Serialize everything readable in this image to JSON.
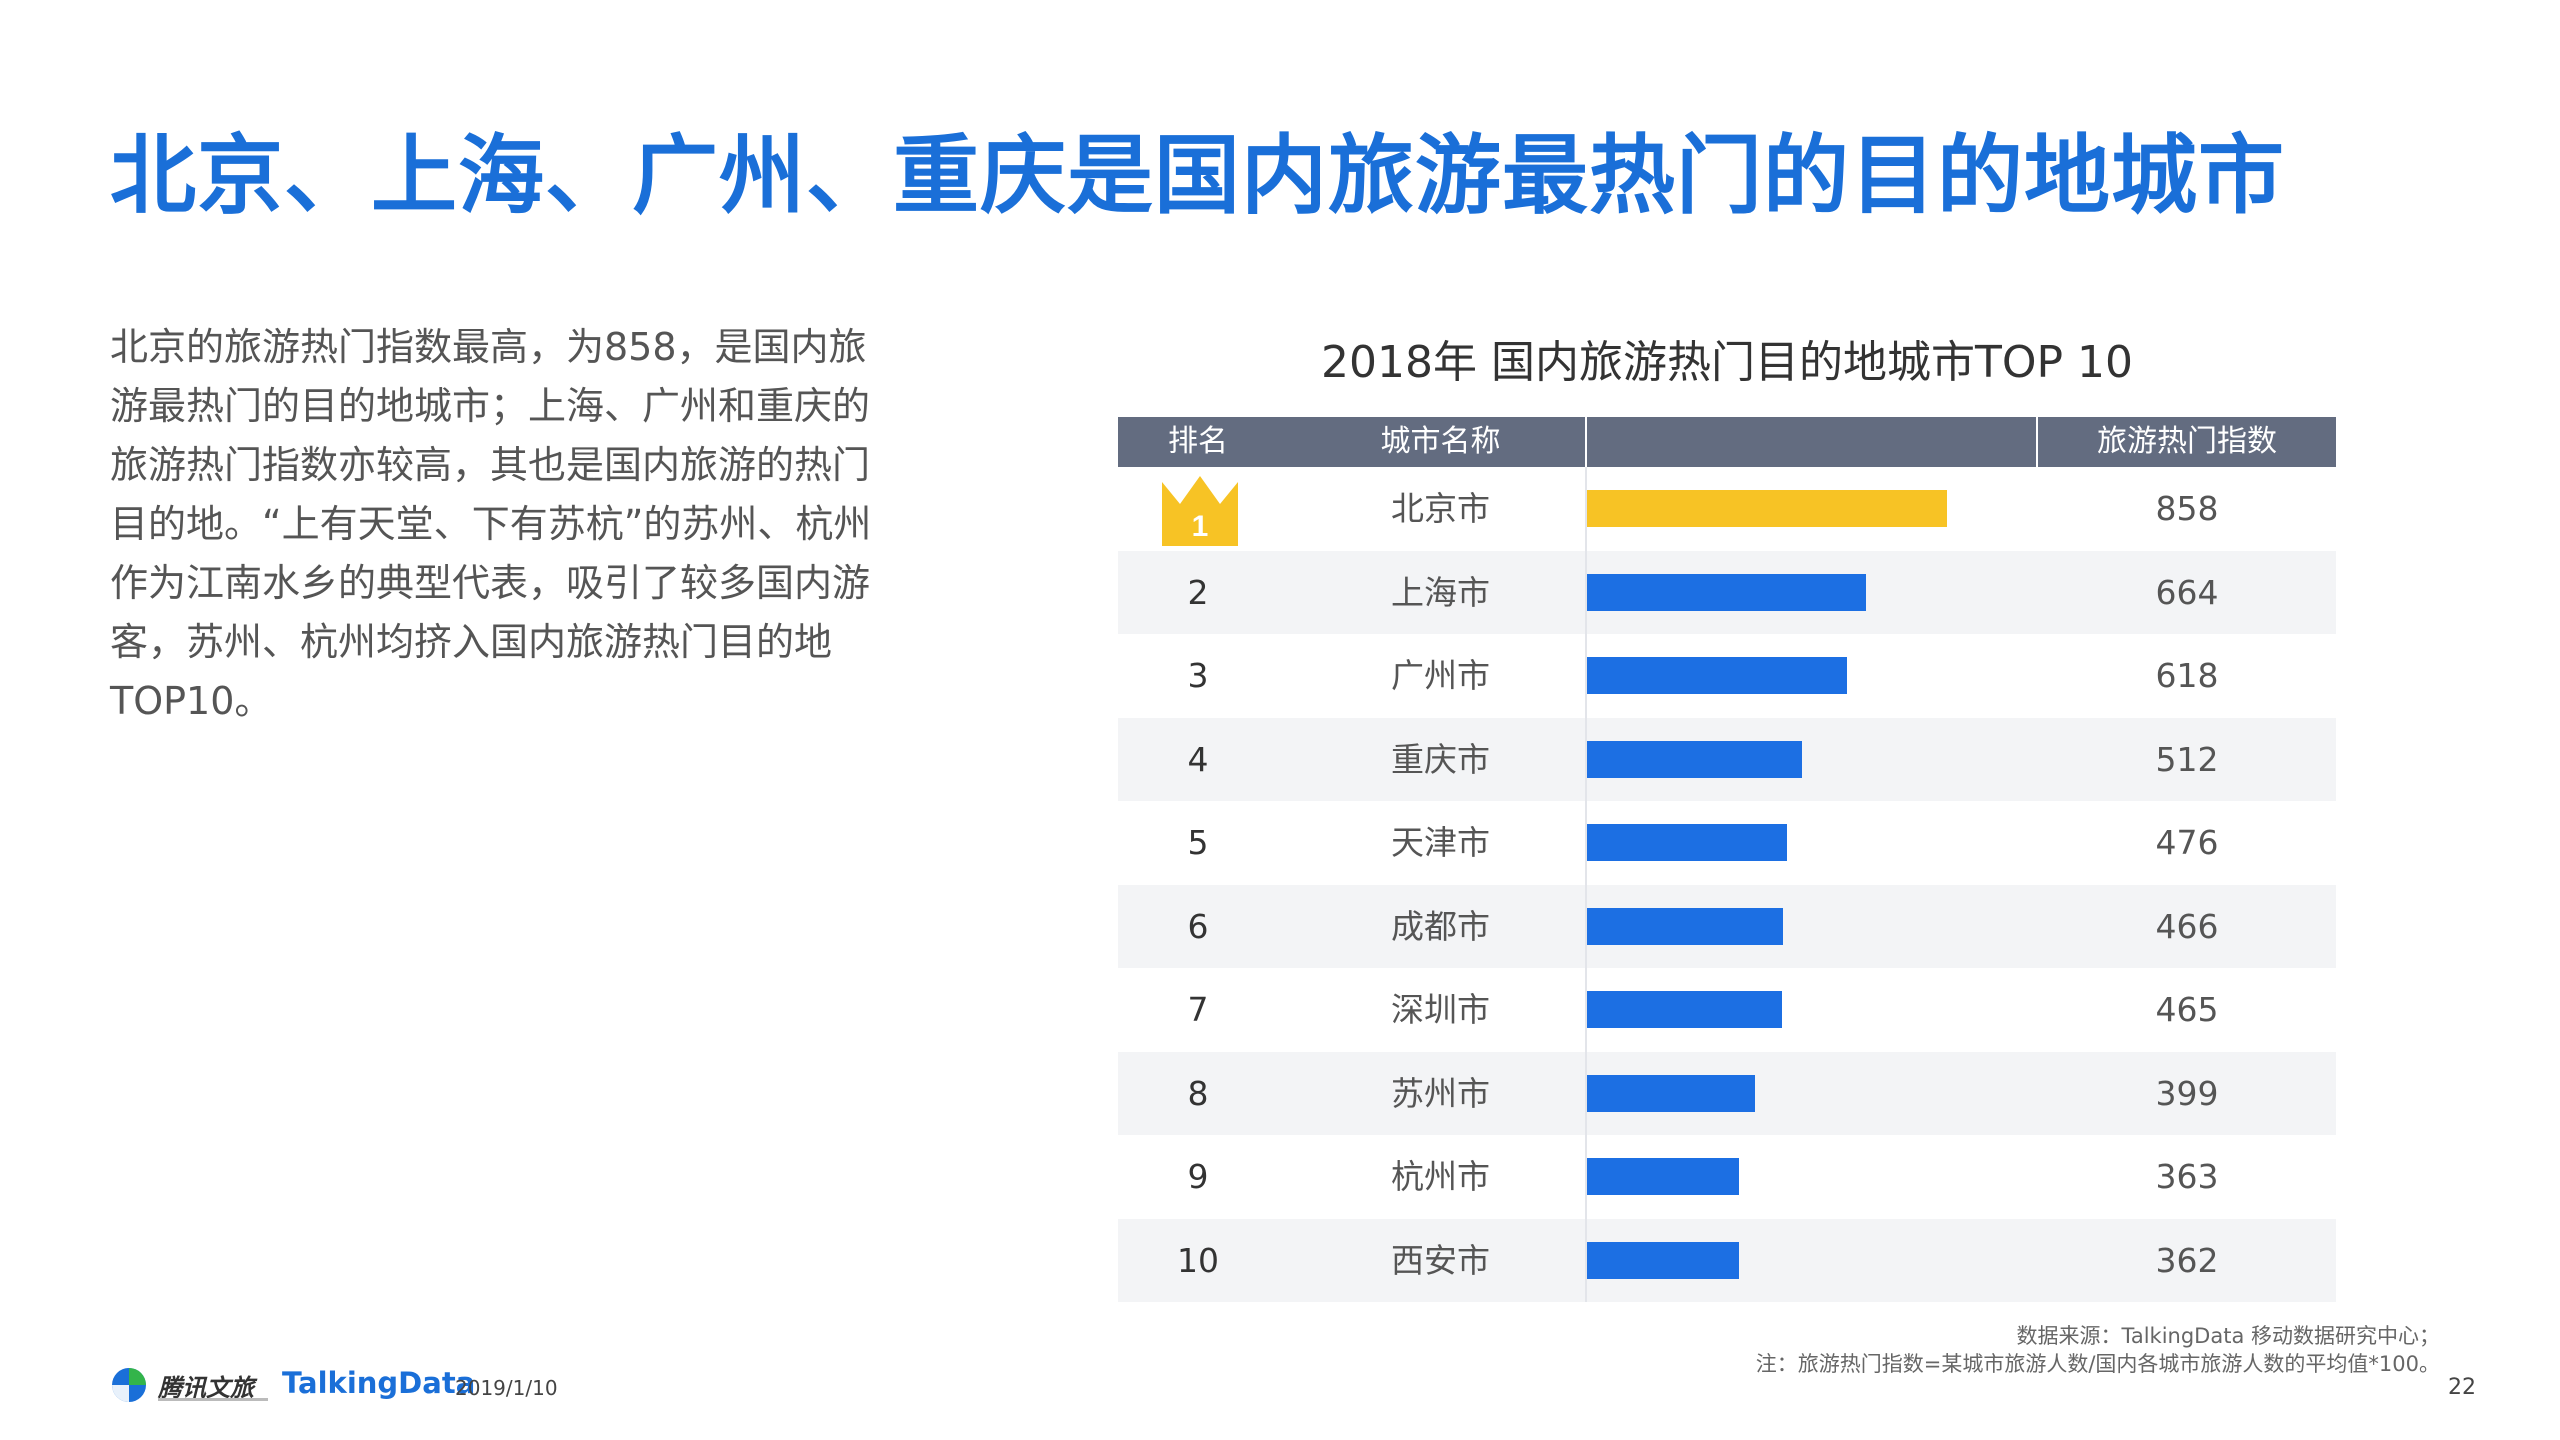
{
  "title": "北京、上海、广州、重庆是国内旅游最热门的目的地城市",
  "summary": "北京的旅游热门指数最高，为858，是国内旅游最热门的目的地城市；上海、广州和重庆的旅游热门指数亦较高，其也是国内旅游的热门目的地。“上有天堂、下有苏杭”的苏州、杭州作为江南水乡的典型代表，吸引了较多国内游客，苏州、杭州均挤入国内旅游热门目的地TOP10。",
  "chart_data": {
    "type": "bar",
    "title": "2018年 国内旅游热门目的地城市TOP 10",
    "columns": [
      "排名",
      "城市名称",
      "",
      "旅游热门指数"
    ],
    "ranks": [
      "1",
      "2",
      "3",
      "4",
      "5",
      "6",
      "7",
      "8",
      "9",
      "10"
    ],
    "categories": [
      "北京市",
      "上海市",
      "广州市",
      "重庆市",
      "天津市",
      "成都市",
      "深圳市",
      "苏州市",
      "杭州市",
      "西安市"
    ],
    "values": [
      858,
      664,
      618,
      512,
      476,
      466,
      465,
      399,
      363,
      362
    ],
    "xlim": [
      0,
      1000
    ],
    "orientation": "horizontal",
    "colors": {
      "top": "#f7c325",
      "bar": "#1c6fe3",
      "header": "#636c80"
    }
  },
  "source": {
    "line1": "数据来源：TalkingData 移动数据研究中心；",
    "line2": "注：旅游热门指数=某城市旅游人数/国内各城市旅游人数的平均值*100。"
  },
  "footer": {
    "logo1": "腾讯文旅",
    "logo2": "TalkingData",
    "date": "2019/1/10"
  },
  "page_number": "22",
  "colors": {
    "title": "#1a6fd8",
    "text": "#555555"
  }
}
